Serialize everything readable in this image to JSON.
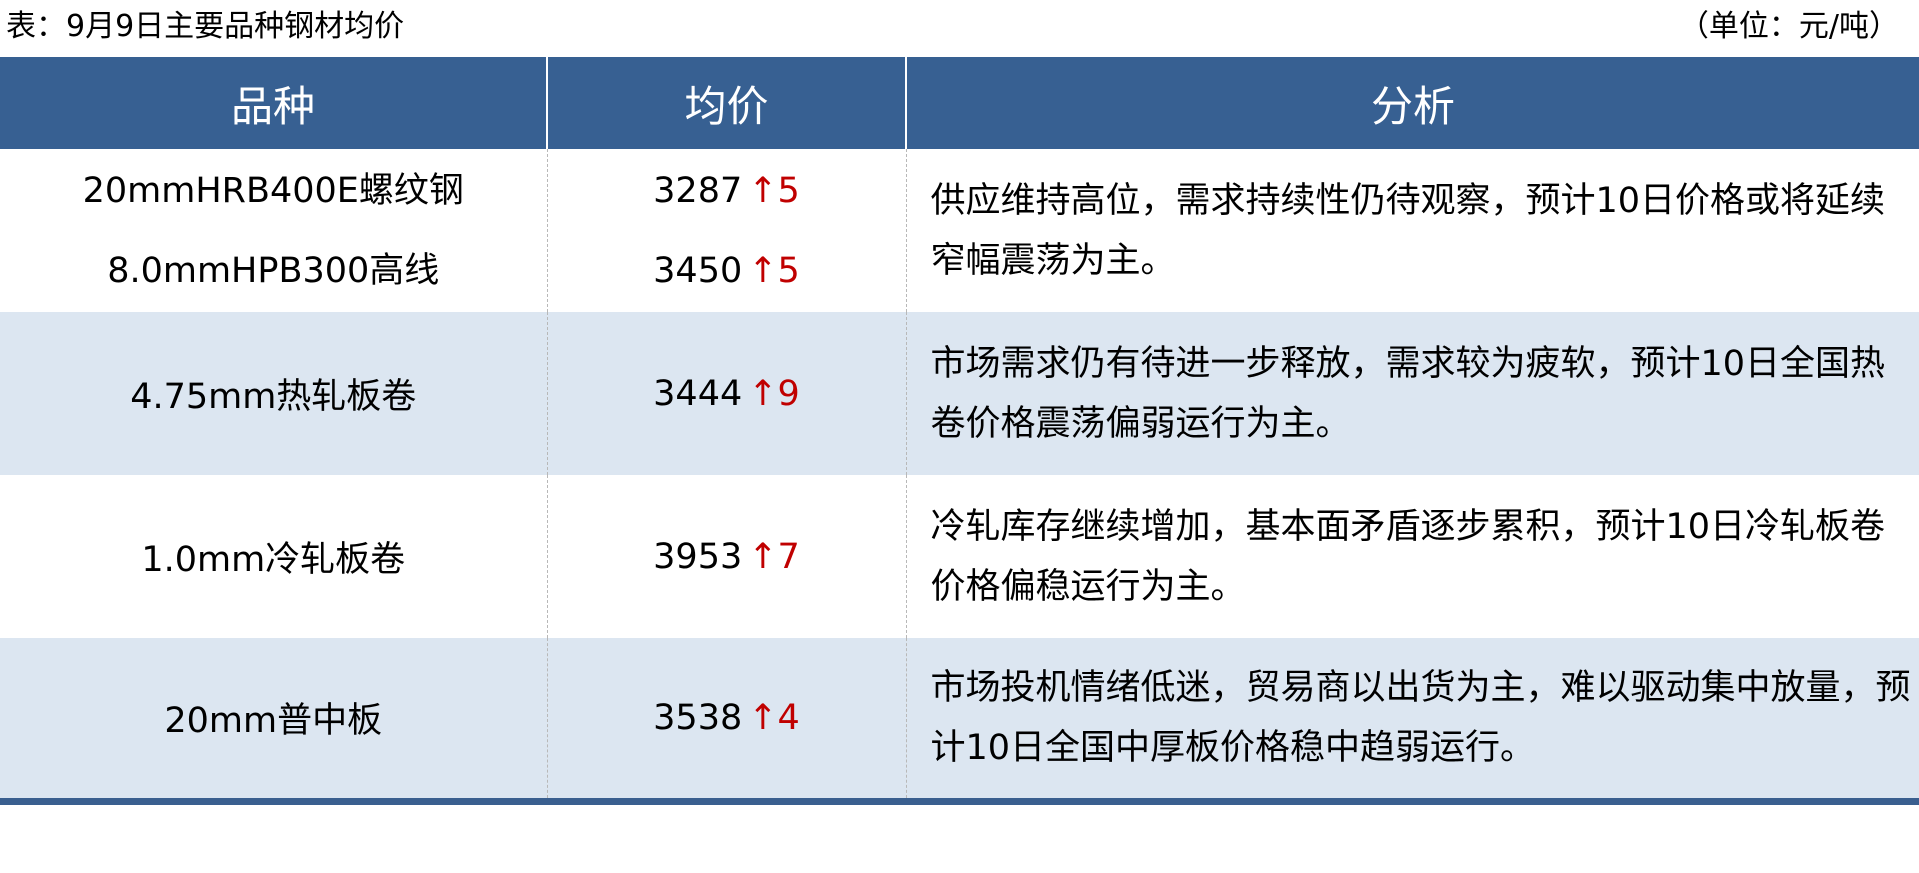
{
  "title": "表：9月9日主要品种钢材均价",
  "unit": "（单位：元/吨）",
  "colors": {
    "header_bg": "#376092",
    "alt_row_bg": "#dce6f1",
    "up": "#c00000"
  },
  "headers": [
    "品种",
    "均价",
    "分析"
  ],
  "rows": [
    {
      "items": [
        {
          "name": "20mmHRB400E螺纹钢",
          "price": "3287",
          "change": "↑5"
        },
        {
          "name": "8.0mmHPB300高线",
          "price": "3450",
          "change": "↑5"
        }
      ],
      "analysis": "供应维持高位，需求持续性仍待观察，预计10日价格或将延续窄幅震荡为主。"
    },
    {
      "items": [
        {
          "name": "4.75mm热轧板卷",
          "price": "3444",
          "change": "↑9"
        }
      ],
      "analysis": "市场需求仍有待进一步释放，需求较为疲软，预计10日全国热卷价格震荡偏弱运行为主。"
    },
    {
      "items": [
        {
          "name": "1.0mm冷轧板卷",
          "price": "3953",
          "change": "↑7"
        }
      ],
      "analysis": "冷轧库存继续增加，基本面矛盾逐步累积，预计10日冷轧板卷价格偏稳运行为主。"
    },
    {
      "items": [
        {
          "name": "20mm普中板",
          "price": "3538",
          "change": "↑4"
        }
      ],
      "analysis": "市场投机情绪低迷，贸易商以出货为主，难以驱动集中放量，预计10日全国中厚板价格稳中趋弱运行。"
    }
  ]
}
